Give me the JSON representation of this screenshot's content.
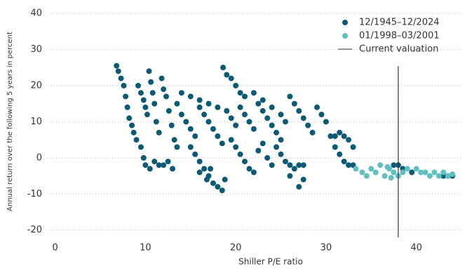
{
  "chart_data": {
    "type": "scatter",
    "x_label": "Shiller P/E ratio",
    "y_label": "Annual return over the following 5 years in percent",
    "xlim": [
      -3,
      45
    ],
    "xticks": [
      0,
      10,
      20,
      30,
      40
    ],
    "ylim": [
      -22,
      42
    ],
    "yticks": [
      -20,
      -10,
      0,
      10,
      20,
      30,
      40
    ],
    "grid": true,
    "legend": "top-right",
    "current_valuation": {
      "label": "Current valuation",
      "x": 38,
      "ymax": 25.4,
      "color": "#333333"
    },
    "series": [
      {
        "name": "12/1945–12/2024",
        "color": "#0b5a74",
        "x": [
          6.8,
          7,
          7.3,
          7.6,
          7.8,
          8,
          8.2,
          8.5,
          8.7,
          9,
          9.2,
          9.5,
          9.8,
          10,
          10.2,
          10.4,
          10.6,
          10.8,
          11,
          11.2,
          11.5,
          11.8,
          12,
          12.3,
          12.6,
          12.9,
          13.2,
          13.5,
          9.5,
          9.8,
          10,
          10.5,
          11,
          11.5,
          12,
          12.5,
          13,
          14,
          14.5,
          15,
          15.5,
          16,
          16.5,
          17,
          17.5,
          18,
          18.5,
          19,
          19.5,
          20,
          20.5,
          21,
          21.5,
          22,
          22.5,
          23,
          23.5,
          24,
          24.5,
          25,
          13.5,
          14,
          15,
          16,
          17,
          18,
          15,
          15.5,
          16,
          16.5,
          17,
          17.5,
          18,
          18.5,
          16,
          16.8,
          17.2,
          18.8,
          18.6,
          19,
          19.5,
          20,
          20.5,
          21,
          19.5,
          20,
          20.5,
          21,
          21.5,
          22,
          22.5,
          23,
          23.5,
          24,
          24.5,
          25,
          25.5,
          26,
          26.5,
          27,
          27.5,
          26,
          27,
          27.5,
          22,
          23,
          24,
          25,
          25.5,
          26,
          26.5,
          27,
          27.5,
          28,
          28.5,
          29,
          29.5,
          30,
          30.5,
          31,
          31.5,
          32,
          32.5,
          33,
          31,
          31.5,
          32,
          32.5,
          33,
          37.5,
          38,
          38.5,
          39.5,
          43,
          43.5,
          44
        ],
        "values": [
          25.5,
          24,
          22,
          20,
          17,
          14,
          11,
          9,
          7,
          5,
          20,
          18,
          16,
          14,
          12,
          24,
          21,
          18,
          15,
          10,
          7,
          22,
          19,
          17,
          13,
          9,
          5,
          3,
          3,
          0,
          -2,
          -3,
          -1,
          -2,
          -2,
          -1,
          -3,
          12,
          10,
          8,
          6,
          14,
          12,
          10,
          8,
          6,
          4,
          13,
          11,
          9,
          14,
          12,
          10,
          8,
          15,
          13,
          11,
          9,
          7,
          5,
          15,
          18,
          17,
          16,
          15,
          14,
          3,
          1,
          -1,
          -3,
          -5,
          -7,
          -8,
          -9,
          -4,
          -6,
          -3,
          -6,
          25,
          23,
          22,
          20,
          18,
          17,
          5,
          3,
          1,
          -1,
          -3,
          -4,
          2,
          4,
          0,
          -2,
          3,
          1,
          -1,
          -2,
          -3,
          -2,
          -2,
          -5,
          -8,
          -6,
          18,
          16,
          14,
          12,
          10,
          17,
          15,
          13,
          11,
          9,
          7,
          14,
          12,
          10,
          6,
          6,
          7,
          6,
          5,
          3,
          3,
          1,
          -1,
          -2,
          -2,
          -2,
          -2,
          -3,
          -4,
          -5,
          -5,
          -5
        ]
      },
      {
        "name": "01/1998–03/2001",
        "color": "#62bfc0",
        "x": [
          33.3,
          34,
          34.5,
          35,
          35.5,
          36,
          36.5,
          37,
          37.5,
          38,
          38.5,
          39,
          40,
          40.5,
          41,
          41.5,
          42,
          42.5,
          43,
          43.5,
          44,
          36.8,
          37.2
        ],
        "values": [
          -3,
          -4,
          -5,
          -3,
          -4,
          -2,
          -5,
          -3,
          -4,
          -5,
          -4,
          -3,
          -3,
          -4,
          -4,
          -5,
          -4,
          -5,
          -4,
          -5,
          -4.5,
          -2.5,
          -5.5
        ]
      }
    ]
  }
}
